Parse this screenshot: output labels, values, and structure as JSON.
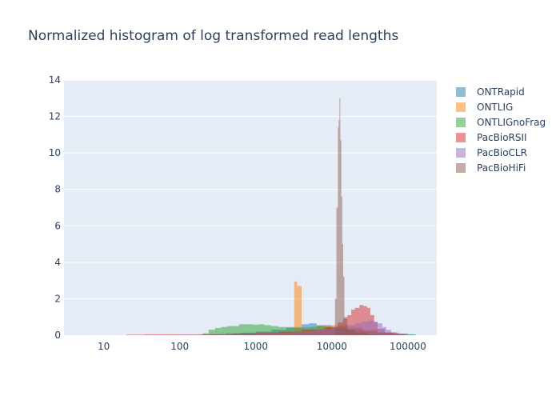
{
  "chart_data": {
    "type": "histogram",
    "title": "Normalized histogram of log transformed read lengths",
    "xlabel": "",
    "ylabel": "",
    "x_scale": "log",
    "xlim": [
      3,
      240000
    ],
    "ylim": [
      0,
      14
    ],
    "x_ticks": [
      {
        "value": 10,
        "label": "10"
      },
      {
        "value": 100,
        "label": "100"
      },
      {
        "value": 1000,
        "label": "1000"
      },
      {
        "value": 10000,
        "label": "10000"
      },
      {
        "value": 100000,
        "label": "100000"
      }
    ],
    "y_ticks": [
      0,
      2,
      4,
      6,
      8,
      10,
      12,
      14
    ],
    "grid": true,
    "legend_position": "right",
    "bar_opacity": 0.5,
    "series": [
      {
        "name": "ONTRapid",
        "color": "#1f77b4",
        "bins": [
          [
            170,
            0.03
          ],
          [
            250,
            0.06
          ],
          [
            400,
            0.1
          ],
          [
            630,
            0.14
          ],
          [
            1000,
            0.2
          ],
          [
            1600,
            0.3
          ],
          [
            2500,
            0.45
          ],
          [
            4000,
            0.6
          ],
          [
            5000,
            0.65
          ],
          [
            6300,
            0.55
          ],
          [
            10000,
            0.45
          ],
          [
            16000,
            0.35
          ],
          [
            25000,
            0.25
          ],
          [
            40000,
            0.15
          ],
          [
            63000,
            0.08
          ],
          [
            100000,
            0.04
          ]
        ]
      },
      {
        "name": "ONTLIG",
        "color": "#ff7f0e",
        "bins": [
          [
            250,
            0.02
          ],
          [
            630,
            0.04
          ],
          [
            1600,
            0.08
          ],
          [
            2500,
            0.2
          ],
          [
            3200,
            2.95
          ],
          [
            3500,
            2.7
          ],
          [
            4000,
            0.35
          ],
          [
            6300,
            0.5
          ],
          [
            10000,
            0.55
          ],
          [
            16000,
            0.45
          ],
          [
            25000,
            0.3
          ],
          [
            40000,
            0.15
          ],
          [
            63000,
            0.06
          ]
        ]
      },
      {
        "name": "ONTLIGnoFrag",
        "color": "#2ca02c",
        "bins": [
          [
            200,
            0.1
          ],
          [
            240,
            0.3
          ],
          [
            290,
            0.4
          ],
          [
            350,
            0.45
          ],
          [
            420,
            0.5
          ],
          [
            500,
            0.5
          ],
          [
            600,
            0.6
          ],
          [
            750,
            0.6
          ],
          [
            900,
            0.58
          ],
          [
            1100,
            0.6
          ],
          [
            1300,
            0.55
          ],
          [
            1600,
            0.5
          ],
          [
            2000,
            0.45
          ],
          [
            2500,
            0.4
          ],
          [
            3200,
            0.4
          ],
          [
            4000,
            0.42
          ],
          [
            5000,
            0.45
          ],
          [
            6300,
            0.5
          ],
          [
            8000,
            0.45
          ],
          [
            10000,
            0.4
          ],
          [
            13000,
            0.35
          ],
          [
            16000,
            0.3
          ],
          [
            20000,
            0.25
          ],
          [
            25000,
            0.2
          ],
          [
            32000,
            0.18
          ],
          [
            40000,
            0.15
          ],
          [
            50000,
            0.12
          ],
          [
            63000,
            0.1
          ],
          [
            80000,
            0.08
          ],
          [
            100000,
            0.05
          ]
        ]
      },
      {
        "name": "PacBioRSII",
        "color": "#d62728",
        "bins": [
          [
            20,
            0.03
          ],
          [
            35,
            0.05
          ],
          [
            60,
            0.05
          ],
          [
            100,
            0.04
          ],
          [
            200,
            0.05
          ],
          [
            500,
            0.1
          ],
          [
            1000,
            0.15
          ],
          [
            2000,
            0.2
          ],
          [
            4000,
            0.3
          ],
          [
            8000,
            0.45
          ],
          [
            12000,
            0.7
          ],
          [
            14000,
            0.9
          ],
          [
            16000,
            1.1
          ],
          [
            18000,
            1.4
          ],
          [
            20000,
            1.5
          ],
          [
            23000,
            1.65
          ],
          [
            26000,
            1.6
          ],
          [
            29000,
            1.5
          ],
          [
            32000,
            1.1
          ],
          [
            36000,
            0.7
          ],
          [
            40000,
            0.35
          ],
          [
            50000,
            0.15
          ],
          [
            70000,
            0.05
          ]
        ]
      },
      {
        "name": "PacBioCLR",
        "color": "#9467bd",
        "bins": [
          [
            100,
            0.02
          ],
          [
            300,
            0.05
          ],
          [
            1000,
            0.1
          ],
          [
            3000,
            0.2
          ],
          [
            6000,
            0.35
          ],
          [
            10000,
            0.45
          ],
          [
            15000,
            0.55
          ],
          [
            20000,
            0.65
          ],
          [
            25000,
            0.75
          ],
          [
            30000,
            0.8
          ],
          [
            35000,
            0.75
          ],
          [
            40000,
            0.65
          ],
          [
            46000,
            0.45
          ],
          [
            52000,
            0.3
          ],
          [
            60000,
            0.15
          ],
          [
            75000,
            0.06
          ],
          [
            90000,
            0.02
          ]
        ]
      },
      {
        "name": "PacBioHiFi",
        "color": "#8c564b",
        "bins": [
          [
            11000,
            2.0
          ],
          [
            11500,
            7.0
          ],
          [
            12000,
            11.4
          ],
          [
            12300,
            11.8
          ],
          [
            12600,
            13.0
          ],
          [
            12900,
            10.7
          ],
          [
            13300,
            7.6
          ],
          [
            13700,
            5.0
          ],
          [
            14100,
            3.2
          ],
          [
            14600,
            1.0
          ],
          [
            16000,
            0.3
          ],
          [
            20000,
            0.15
          ],
          [
            30000,
            0.05
          ]
        ]
      }
    ]
  }
}
